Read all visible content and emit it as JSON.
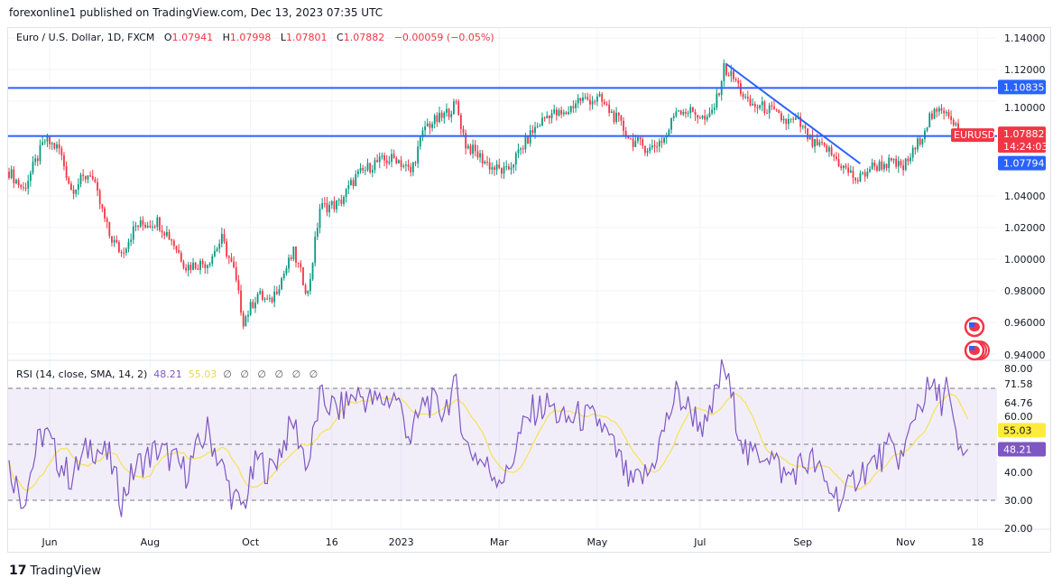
{
  "header": {
    "published": "forexonline1 published on TradingView.com, Dec 13, 2023 07:35 UTC"
  },
  "legend": {
    "symbol": "Euro / U.S. Dollar, 1D, FXCM",
    "o_label": "O",
    "o": "1.07941",
    "h_label": "H",
    "h": "1.07998",
    "l_label": "L",
    "l": "1.07801",
    "c_label": "C",
    "c": "1.07882",
    "change": "−0.00059 (−0.05%)"
  },
  "rsi_legend": {
    "title": "RSI (14, close, SMA, 14, 2)",
    "rsi": "48.21",
    "sma": "55.03",
    "empty": "∅ ∅ ∅ ∅ ∅ ∅"
  },
  "footer": {
    "brand": "TradingView"
  },
  "colors": {
    "up": "#089981",
    "down": "#f23645",
    "line": "#2962ff",
    "rsi": "#7e57c2",
    "sma": "#f5e262"
  },
  "chart_data": [
    {
      "type": "candlestick",
      "title": "Euro / U.S. Dollar, 1D, FXCM",
      "ylim": [
        0.93,
        1.145
      ],
      "y_ticks": [
        "1.14000",
        "1.12000",
        "1.10000",
        "1.04000",
        "1.02000",
        "1.00000",
        "0.98000",
        "0.96000",
        "0.94000"
      ],
      "x_ticks": [
        {
          "label": "Jun",
          "i": 17
        },
        {
          "label": "Aug",
          "i": 59
        },
        {
          "label": "Oct",
          "i": 101
        },
        {
          "label": "16",
          "i": 135
        },
        {
          "label": "2023",
          "i": 164
        },
        {
          "label": "Mar",
          "i": 205
        },
        {
          "label": "May",
          "i": 246
        },
        {
          "label": "Jul",
          "i": 289
        },
        {
          "label": "Sep",
          "i": 332
        },
        {
          "label": "Nov",
          "i": 375
        },
        {
          "label": "18",
          "i": 405
        }
      ],
      "close_keypoints": [
        [
          0,
          1.0554
        ],
        [
          6,
          1.044
        ],
        [
          15,
          1.075
        ],
        [
          21,
          1.0697
        ],
        [
          26,
          1.044
        ],
        [
          34,
          1.055
        ],
        [
          42,
          1.015
        ],
        [
          47,
          1.004
        ],
        [
          53,
          1.021
        ],
        [
          62,
          1.024
        ],
        [
          68,
          1.0126
        ],
        [
          74,
          0.9954
        ],
        [
          83,
          0.998
        ],
        [
          89,
          1.0126
        ],
        [
          94,
          0.9926
        ],
        [
          98,
          0.961
        ],
        [
          104,
          0.978
        ],
        [
          109,
          0.972
        ],
        [
          119,
          1.004
        ],
        [
          125,
          0.978
        ],
        [
          130,
          1.0326
        ],
        [
          138,
          1.035
        ],
        [
          145,
          1.052
        ],
        [
          153,
          1.061
        ],
        [
          162,
          1.064
        ],
        [
          168,
          1.055
        ],
        [
          174,
          1.084
        ],
        [
          181,
          1.0897
        ],
        [
          187,
          1.098
        ],
        [
          191,
          1.0726
        ],
        [
          202,
          1.058
        ],
        [
          208,
          1.055
        ],
        [
          213,
          1.067
        ],
        [
          219,
          1.081
        ],
        [
          226,
          1.0926
        ],
        [
          232,
          1.091
        ],
        [
          238,
          1.101
        ],
        [
          247,
          1.101
        ],
        [
          255,
          1.087
        ],
        [
          260,
          1.0754
        ],
        [
          268,
          1.0697
        ],
        [
          275,
          1.078
        ],
        [
          279,
          1.0954
        ],
        [
          287,
          1.0926
        ],
        [
          292,
          1.087
        ],
        [
          296,
          1.101
        ],
        [
          299,
          1.121
        ],
        [
          304,
          1.1126
        ],
        [
          309,
          1.098
        ],
        [
          317,
          1.0954
        ],
        [
          325,
          1.087
        ],
        [
          330,
          1.087
        ],
        [
          336,
          1.0726
        ],
        [
          342,
          1.0697
        ],
        [
          349,
          1.058
        ],
        [
          355,
          1.0497
        ],
        [
          360,
          1.058
        ],
        [
          368,
          1.061
        ],
        [
          374,
          1.058
        ],
        [
          379,
          1.0697
        ],
        [
          385,
          1.0897
        ],
        [
          392,
          1.0954
        ],
        [
          398,
          1.0794
        ],
        [
          401,
          1.07882
        ]
      ],
      "horizontal_lines": [
        {
          "value": 1.10835,
          "label": "1.10835"
        },
        {
          "value": 1.07794,
          "label": "1.07794"
        }
      ],
      "trendline": [
        [
          300,
          1.1235
        ],
        [
          356,
          1.0605
        ]
      ],
      "last_price": {
        "symbol": "EURUSD",
        "value": 1.07882,
        "label": "1.07882",
        "countdown": "14:24:03"
      }
    },
    {
      "type": "line",
      "title": "RSI (14, close, SMA, 14, 2)",
      "ylim": [
        20,
        80
      ],
      "y_ticks": [
        "80.00",
        "71.58",
        "64.76",
        "60.00",
        "40.00",
        "30.00",
        "20.00"
      ],
      "bands": [
        30,
        50,
        70
      ],
      "rsi_keypoints": [
        [
          0,
          42
        ],
        [
          6,
          30
        ],
        [
          12,
          50
        ],
        [
          15,
          55
        ],
        [
          20,
          45
        ],
        [
          26,
          38
        ],
        [
          34,
          50
        ],
        [
          42,
          45
        ],
        [
          47,
          30
        ],
        [
          53,
          42
        ],
        [
          62,
          48
        ],
        [
          68,
          45
        ],
        [
          74,
          40
        ],
        [
          83,
          55
        ],
        [
          89,
          42
        ],
        [
          94,
          30
        ],
        [
          98,
          28
        ],
        [
          104,
          45
        ],
        [
          109,
          40
        ],
        [
          119,
          58
        ],
        [
          125,
          42
        ],
        [
          130,
          66
        ],
        [
          138,
          62
        ],
        [
          145,
          68
        ],
        [
          153,
          65
        ],
        [
          162,
          67
        ],
        [
          168,
          52
        ],
        [
          174,
          66
        ],
        [
          181,
          62
        ],
        [
          187,
          70
        ],
        [
          191,
          50
        ],
        [
          202,
          40
        ],
        [
          208,
          38
        ],
        [
          213,
          52
        ],
        [
          219,
          62
        ],
        [
          226,
          64
        ],
        [
          232,
          58
        ],
        [
          238,
          60
        ],
        [
          247,
          58
        ],
        [
          255,
          45
        ],
        [
          260,
          35
        ],
        [
          268,
          40
        ],
        [
          275,
          58
        ],
        [
          279,
          68
        ],
        [
          287,
          60
        ],
        [
          292,
          55
        ],
        [
          296,
          70
        ],
        [
          299,
          78
        ],
        [
          304,
          60
        ],
        [
          309,
          45
        ],
        [
          317,
          48
        ],
        [
          325,
          38
        ],
        [
          330,
          42
        ],
        [
          336,
          44
        ],
        [
          342,
          35
        ],
        [
          349,
          30
        ],
        [
          355,
          40
        ],
        [
          360,
          42
        ],
        [
          368,
          48
        ],
        [
          374,
          45
        ],
        [
          379,
          62
        ],
        [
          385,
          70
        ],
        [
          390,
          66
        ],
        [
          392,
          72
        ],
        [
          395,
          55
        ],
        [
          398,
          45
        ],
        [
          401,
          48.21
        ]
      ],
      "rsi_last": {
        "value": 48.21,
        "label": "48.21"
      },
      "sma_last": {
        "value": 55.03,
        "label": "55.03"
      }
    }
  ]
}
